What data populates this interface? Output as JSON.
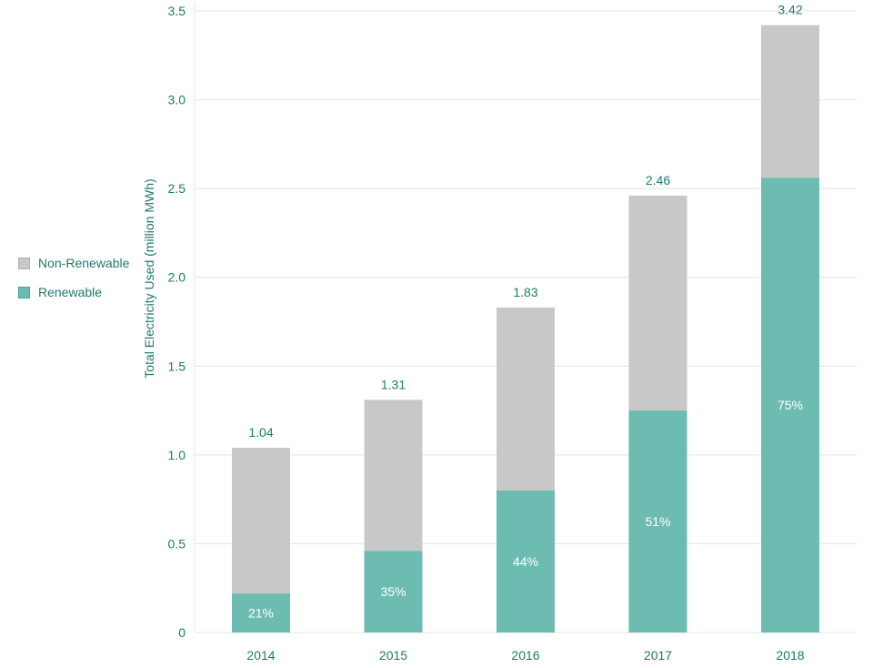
{
  "chart_data": {
    "type": "bar",
    "stacked": true,
    "categories": [
      "2014",
      "2015",
      "2016",
      "2017",
      "2018"
    ],
    "series": [
      {
        "name": "Renewable",
        "values": [
          0.22,
          0.46,
          0.8,
          1.25,
          2.56
        ],
        "color": "#6dbcb1",
        "labels": [
          "21%",
          "35%",
          "44%",
          "51%",
          "75%"
        ]
      },
      {
        "name": "Non-Renewable",
        "values": [
          0.82,
          0.85,
          1.03,
          1.21,
          0.86
        ],
        "color": "#c8c8c8"
      }
    ],
    "totals": [
      1.04,
      1.31,
      1.83,
      2.46,
      3.42
    ],
    "total_labels": [
      "1.04",
      "1.31",
      "1.83",
      "2.46",
      "3.42"
    ],
    "title": "",
    "xlabel": "",
    "ylabel": "Total Electricity Used (million MWh)",
    "ylim": [
      0,
      3.5
    ],
    "yticks": [
      "0",
      "0.5",
      "1.0",
      "1.5",
      "2.0",
      "2.5",
      "3.0",
      "3.5"
    ],
    "grid": true,
    "legend_position": "left",
    "colors": {
      "text": "#1f7a6c",
      "grid": "#e4e4e4"
    }
  },
  "legend": [
    {
      "label": "Non-Renewable",
      "color": "#c8c8c8"
    },
    {
      "label": "Renewable",
      "color": "#6dbcb1"
    }
  ]
}
